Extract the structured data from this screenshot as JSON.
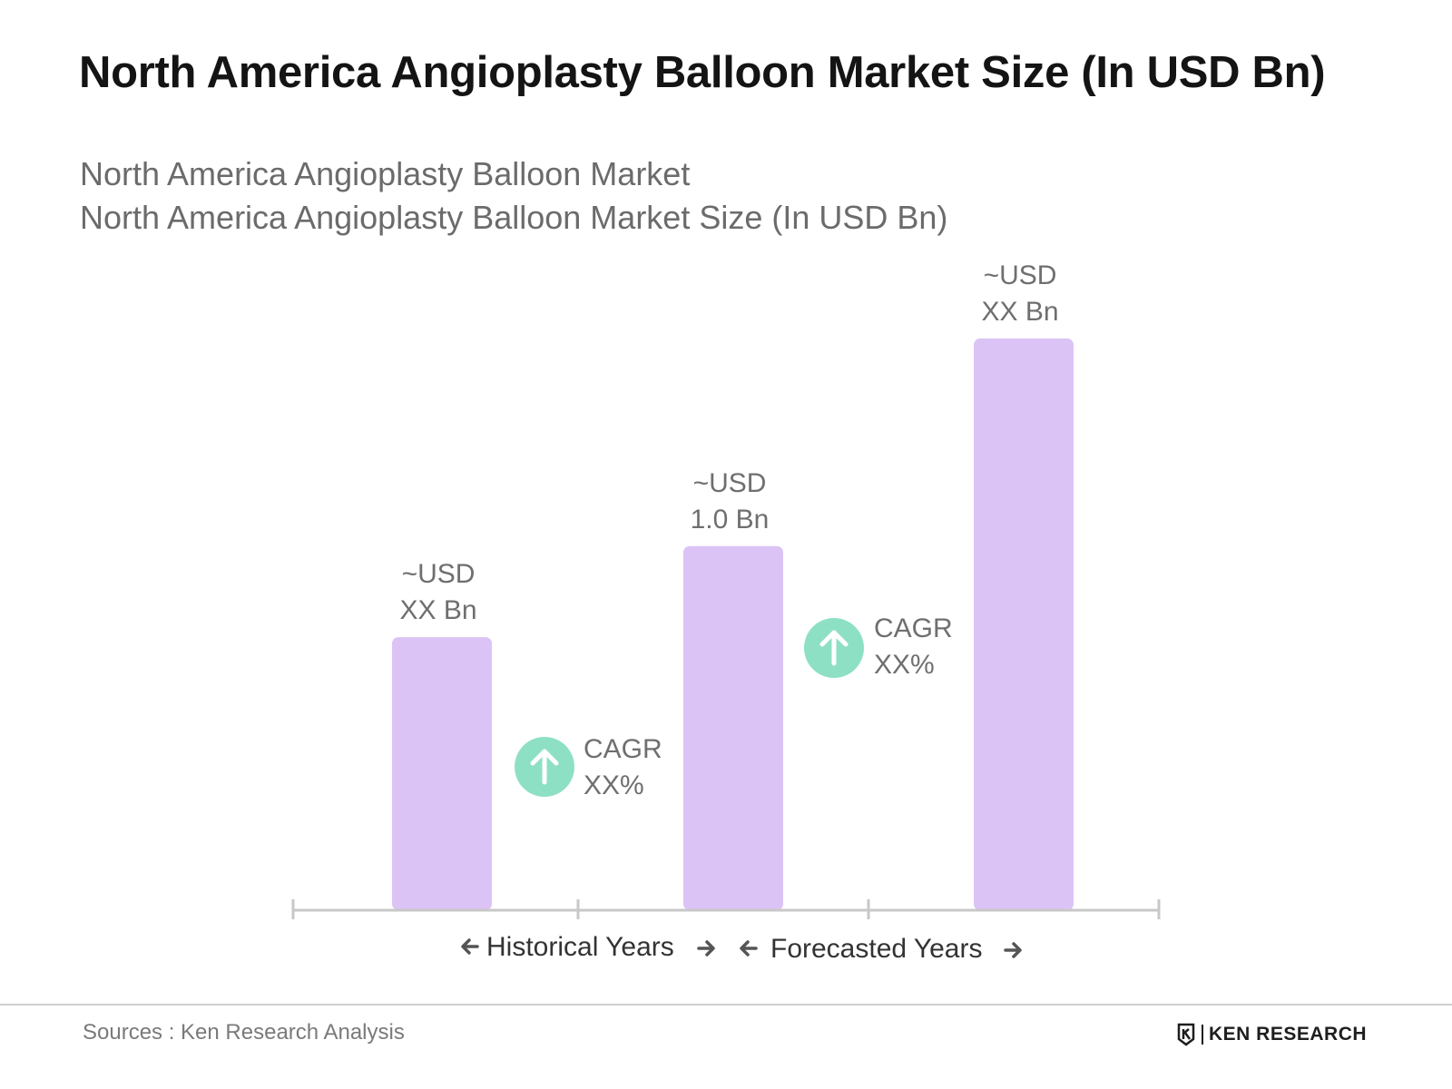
{
  "title": "North America Angioplasty Balloon Market Size (In USD Bn)",
  "subtitle_lines": [
    "North America Angioplasty Balloon Market",
    "North America Angioplasty Balloon Market Size (In USD Bn)"
  ],
  "chart_data": {
    "type": "bar",
    "categories": [
      "",
      "",
      ""
    ],
    "values": [
      0.75,
      1.0,
      1.57
    ],
    "data_labels": [
      [
        "~USD",
        "XX Bn"
      ],
      [
        "~USD",
        "1.0 Bn"
      ],
      [
        "~USD",
        "XX Bn"
      ]
    ],
    "ylim": [
      0,
      1.6
    ],
    "grid": false,
    "cagr": [
      {
        "label": "CAGR",
        "value": "XX%",
        "icon": "arrow-up-circle-icon"
      },
      {
        "label": "CAGR",
        "value": "XX%",
        "icon": "arrow-up-circle-icon"
      }
    ],
    "periods": [
      {
        "label": "Historical Years"
      },
      {
        "label": "Forecasted Years"
      }
    ]
  },
  "colors": {
    "bar": "#dcc3f6",
    "cagr_circle": "#8ee0c4",
    "axis": "#c8c8c8",
    "arrow": "#555555"
  },
  "footer": {
    "source": "Sources : Ken Research Analysis",
    "brand": "KEN RESEARCH",
    "brand_logo": "ken-research-logo-icon"
  }
}
